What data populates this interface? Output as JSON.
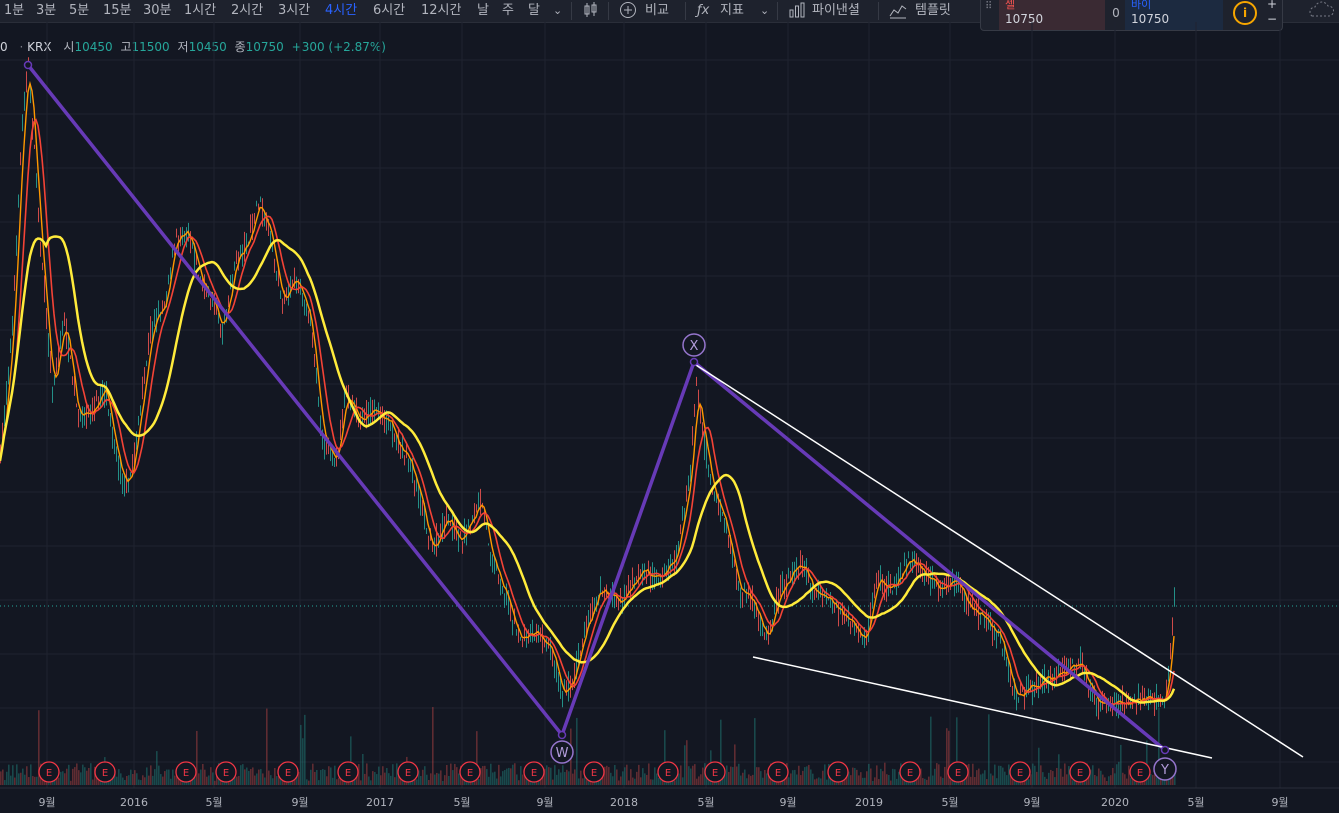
{
  "toolbar": {
    "intervals": [
      "1분",
      "3분",
      "5분",
      "15분",
      "30분",
      "1시간",
      "2시간",
      "3시간",
      "4시간",
      "6시간",
      "12시간",
      "날",
      "주",
      "달"
    ],
    "active_interval": "4시간",
    "compare_label": "비교",
    "indicators_label": "지표",
    "financials_label": "파이낸셜",
    "templates_label": "템플릿"
  },
  "trade": {
    "sell_label": "셀",
    "sell_price": "10750",
    "quantity": "0",
    "buy_label": "바이",
    "buy_price": "10750",
    "plus": "+",
    "minus": "−",
    "info": "i"
  },
  "legend": {
    "prefix": "0",
    "exchange": "KRX",
    "open_label": "시",
    "open": "10450",
    "high_label": "고",
    "high": "11500",
    "low_label": "저",
    "low": "10450",
    "close_label": "종",
    "close": "10750",
    "change": "+300 (+2.87%)"
  },
  "colors": {
    "background": "#131722",
    "up": "#26a69a",
    "down": "#ef5350",
    "ma_short": "#ff9800",
    "ma_mid": "#f44336",
    "ma_long": "#ffeb3b",
    "pattern": "#673ab7",
    "trendline": "#ffffff",
    "earnings": "#f23645"
  },
  "chart_data": {
    "type": "line",
    "x_axis_labels": [
      "9월",
      "2016",
      "5월",
      "9월",
      "2017",
      "5월",
      "9월",
      "2018",
      "5월",
      "9월",
      "2019",
      "5월",
      "9월",
      "2020",
      "5월",
      "9월"
    ],
    "last_price": 10750,
    "wave_labels": [
      "W",
      "X",
      "Y"
    ],
    "earnings_marker": "E",
    "earnings_count": 19
  }
}
